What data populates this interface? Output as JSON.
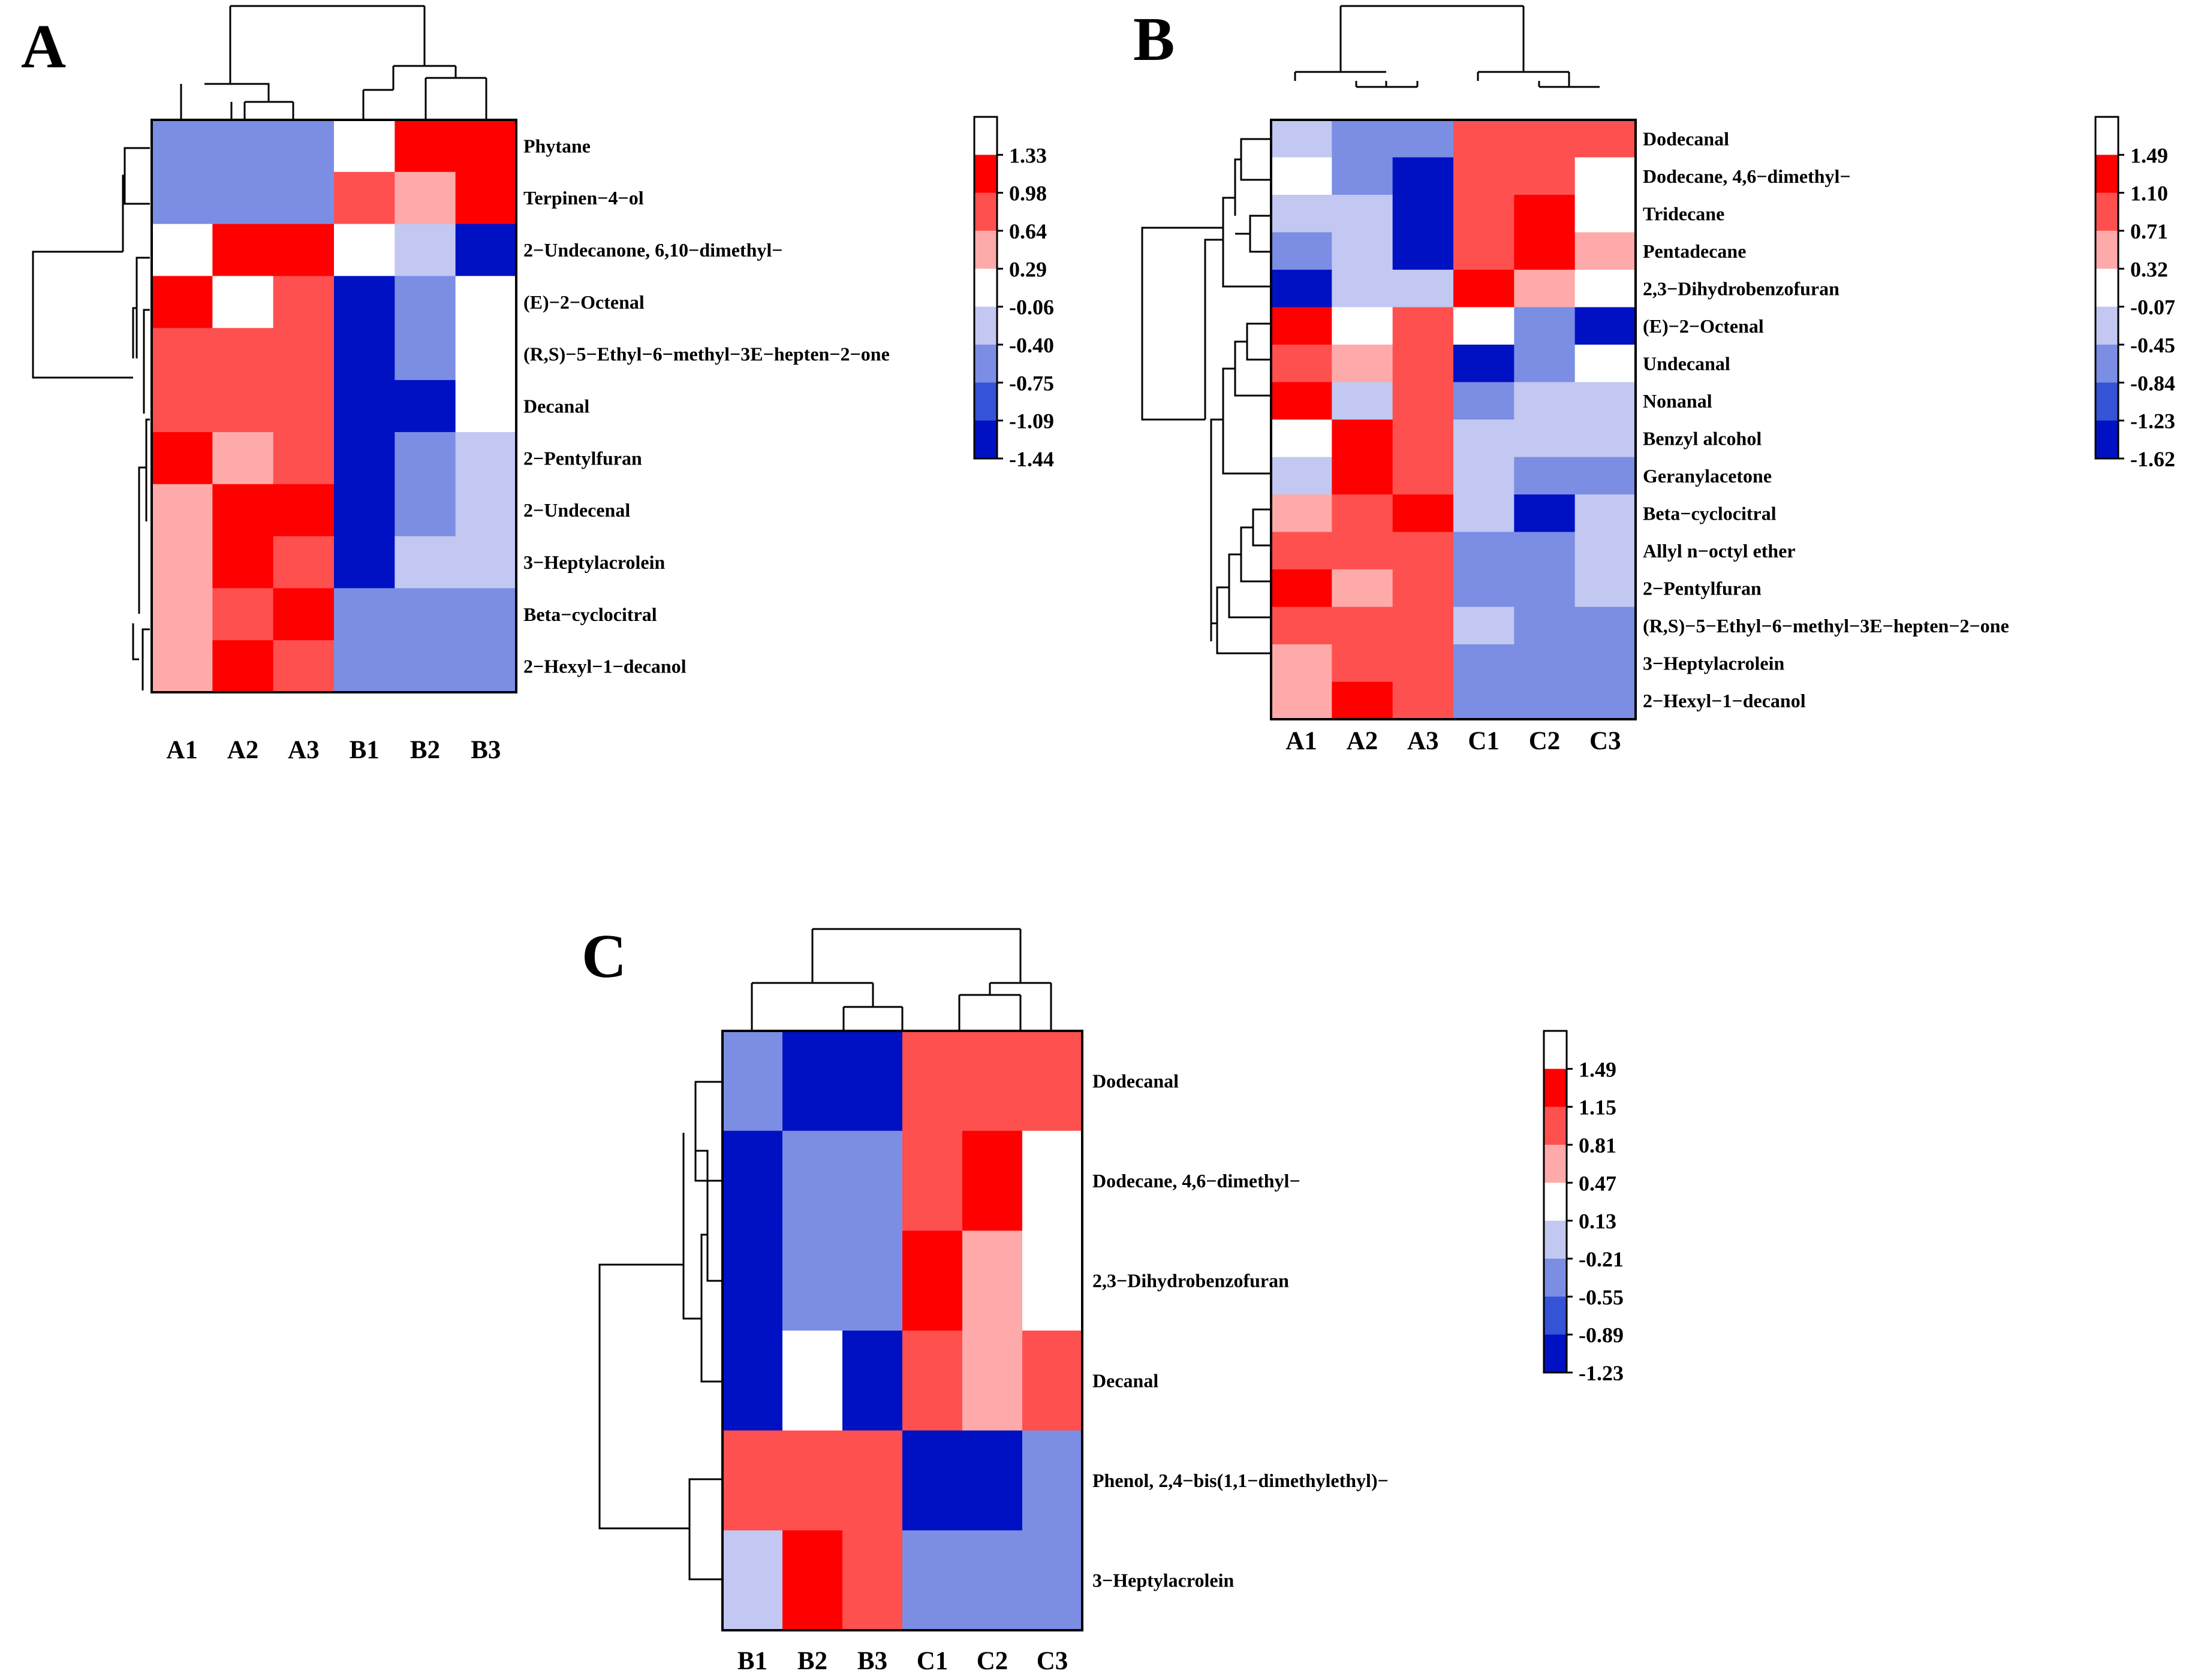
{
  "colors": {
    "scale": [
      "#0011c4",
      "#3453d6",
      "#7b8ee3",
      "#c2c8f1",
      "#ffffff",
      "#ffaaaa",
      "#ff5050",
      "#ff0000",
      "#ffffff"
    ]
  },
  "chart_data": [
    {
      "type": "heatmap",
      "panel": "A",
      "columns": [
        "A1",
        "A2",
        "A3",
        "B1",
        "B2",
        "B3"
      ],
      "rows": [
        "Phytane",
        "Terpinen−4−ol",
        "2−Undecanone, 6,10−dimethyl−",
        "(E)−2−Octenal",
        "(R,S)−5−Ethyl−6−methyl−3E−hepten−2−one",
        "Decanal",
        "2−Pentylfuran",
        "2−Undecenal",
        "3−Heptylacrolein",
        "Beta−cyclocitral",
        "2−Hexyl−1−decanol"
      ],
      "legend_ticks": [
        "1.33",
        "0.98",
        "0.64",
        "0.29",
        "-0.06",
        "-0.40",
        "-0.75",
        "-1.09",
        "-1.44"
      ],
      "values": [
        [
          -0.9,
          -0.9,
          -0.9,
          -0.2,
          1.2,
          1.2
        ],
        [
          -0.9,
          -0.9,
          -0.9,
          0.8,
          0.45,
          1.2
        ],
        [
          -0.2,
          1.2,
          1.2,
          -0.2,
          -0.6,
          -1.5
        ],
        [
          1.2,
          0.1,
          0.8,
          -1.5,
          -0.9,
          -0.2
        ],
        [
          0.8,
          0.8,
          0.8,
          -1.5,
          -0.9,
          0.1
        ],
        [
          0.8,
          0.8,
          0.8,
          -1.5,
          -1.5,
          -0.2
        ],
        [
          1.2,
          0.45,
          0.8,
          -1.5,
          -0.9,
          -0.6
        ],
        [
          0.45,
          1.2,
          1.2,
          -1.5,
          -0.9,
          -0.6
        ],
        [
          0.45,
          1.2,
          0.8,
          -1.5,
          -0.6,
          -0.6
        ],
        [
          0.45,
          0.8,
          1.2,
          -0.9,
          -0.9,
          -0.9
        ],
        [
          0.45,
          1.2,
          0.8,
          -0.9,
          -0.9,
          -0.9
        ]
      ]
    },
    {
      "type": "heatmap",
      "panel": "B",
      "columns": [
        "A1",
        "A2",
        "A3",
        "C1",
        "C2",
        "C3"
      ],
      "rows": [
        "Dodecanal",
        "Dodecane, 4,6−dimethyl−",
        "Tridecane",
        "Pentadecane",
        "2,3−Dihydrobenzofuran",
        "(E)−2−Octenal",
        "Undecanal",
        "Nonanal",
        "Benzyl alcohol",
        "Geranylacetone",
        "Beta−cyclocitral",
        "Allyl n−octyl ether",
        "2−Pentylfuran",
        "(R,S)−5−Ethyl−6−methyl−3E−hepten−2−one",
        "3−Heptylacrolein",
        "2−Hexyl−1−decanol"
      ],
      "legend_ticks": [
        "1.49",
        "1.10",
        "0.71",
        "0.32",
        "-0.07",
        "-0.45",
        "-0.84",
        "-1.23",
        "-1.62"
      ],
      "values": [
        [
          -0.6,
          -1.0,
          -1.0,
          0.9,
          0.9,
          0.9
        ],
        [
          0.1,
          -1.0,
          -1.7,
          0.9,
          0.9,
          0.1
        ],
        [
          -0.3,
          -0.6,
          -1.7,
          0.9,
          1.3,
          0.1
        ],
        [
          -1.0,
          -0.3,
          -1.7,
          0.9,
          1.3,
          0.5
        ],
        [
          -1.7,
          -0.3,
          -0.6,
          1.3,
          0.5,
          0.1
        ],
        [
          1.3,
          0.1,
          0.9,
          0.1,
          -1.0,
          -1.7
        ],
        [
          0.9,
          0.5,
          0.9,
          -1.7,
          -1.0,
          0.1
        ],
        [
          1.3,
          -0.3,
          0.9,
          -1.0,
          -0.6,
          -0.3
        ],
        [
          0.1,
          1.3,
          0.9,
          -0.6,
          -0.6,
          -0.6
        ],
        [
          -0.3,
          1.3,
          0.9,
          -0.3,
          -1.0,
          -1.0
        ],
        [
          0.5,
          0.9,
          1.3,
          -0.6,
          -1.7,
          -0.6
        ],
        [
          0.9,
          0.9,
          0.9,
          -1.0,
          -1.0,
          -0.6
        ],
        [
          1.3,
          0.5,
          0.9,
          -1.0,
          -1.0,
          -0.6
        ],
        [
          0.9,
          0.9,
          0.9,
          -0.6,
          -1.0,
          -1.0
        ],
        [
          0.5,
          0.9,
          0.9,
          -1.0,
          -1.0,
          -1.0
        ],
        [
          0.5,
          1.3,
          0.9,
          -1.0,
          -1.0,
          -1.0
        ]
      ]
    },
    {
      "type": "heatmap",
      "panel": "C",
      "columns": [
        "B1",
        "B2",
        "B3",
        "C1",
        "C2",
        "C3"
      ],
      "rows": [
        "Dodecanal",
        "Dodecane, 4,6−dimethyl−",
        "2,3−Dihydrobenzofuran",
        "Decanal",
        "Phenol, 2,4−bis(1,1−dimethylethyl)−",
        "3−Heptylacrolein"
      ],
      "legend_ticks": [
        "1.49",
        "1.15",
        "0.81",
        "0.47",
        "0.13",
        "-0.21",
        "-0.55",
        "-0.89",
        "-1.23"
      ],
      "values": [
        [
          -0.7,
          -1.3,
          -1.3,
          1.0,
          1.0,
          1.0
        ],
        [
          -1.3,
          -0.7,
          -0.7,
          1.0,
          1.3,
          -0.05
        ],
        [
          -1.3,
          -0.7,
          -0.7,
          1.3,
          0.6,
          0.3
        ],
        [
          -1.3,
          -0.05,
          -1.3,
          1.0,
          0.6,
          1.0
        ],
        [
          1.0,
          1.0,
          1.0,
          -1.3,
          -1.3,
          -0.7
        ],
        [
          -0.4,
          1.3,
          1.0,
          -0.7,
          -0.7,
          -0.7
        ]
      ]
    }
  ]
}
